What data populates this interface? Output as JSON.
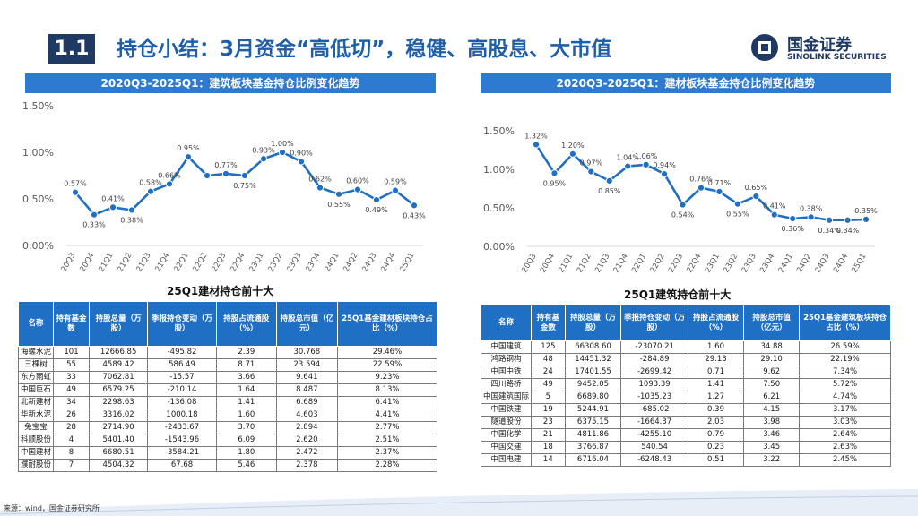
{
  "header": {
    "section_number": "1.1",
    "title": "持仓小结：3月资金“高低切”，稳健、高股息、大市值",
    "logo_cn": "国金证券",
    "logo_en": "SINOLINK SECURITIES"
  },
  "chart_data": [
    {
      "type": "line",
      "title": "2020Q3-2025Q1：建筑板块基金持仓比例变化趋势",
      "categories": [
        "20Q3",
        "20Q4",
        "21Q1",
        "21Q2",
        "21Q3",
        "21Q4",
        "22Q1",
        "22Q2",
        "22Q3",
        "22Q4",
        "23Q1",
        "23Q2",
        "23Q3",
        "23Q4",
        "24Q1",
        "24Q2",
        "24Q3",
        "24Q4",
        "25Q1"
      ],
      "values": [
        0.57,
        0.33,
        0.41,
        0.38,
        0.58,
        0.66,
        0.95,
        0.75,
        0.77,
        0.75,
        0.93,
        1.0,
        0.9,
        0.62,
        0.55,
        0.6,
        0.49,
        0.59,
        0.43
      ],
      "data_labels": [
        "0.57%",
        "0.33%",
        "0.41%",
        "0.38%",
        "0.58%",
        "0.66%",
        "0.95%",
        "",
        "0.77%",
        "0.75%",
        "0.93%",
        "1.00%",
        "0.90%",
        "0.62%",
        "0.55%",
        "0.60%",
        "0.49%",
        "0.59%",
        "0.43%"
      ],
      "y_ticks": [
        "0.00%",
        "0.50%",
        "1.00%",
        "1.50%"
      ],
      "ylim": [
        0,
        1.5
      ],
      "color": "#1f6fc5"
    },
    {
      "type": "line",
      "title": "2020Q3-2025Q1：建材板块基金持仓比例变化趋势",
      "categories": [
        "20Q3",
        "20Q4",
        "21Q1",
        "21Q2",
        "21Q3",
        "21Q4",
        "22Q1",
        "22Q2",
        "22Q3",
        "22Q4",
        "23Q1",
        "23Q2",
        "23Q3",
        "23Q4",
        "24Q1",
        "24Q2",
        "24Q3",
        "24Q4",
        "25Q1"
      ],
      "values": [
        1.32,
        0.95,
        1.2,
        0.97,
        0.85,
        1.04,
        1.06,
        0.94,
        0.54,
        0.76,
        0.71,
        0.55,
        0.65,
        0.41,
        0.36,
        0.38,
        0.34,
        0.34,
        0.35
      ],
      "data_labels": [
        "1.32%",
        "0.95%",
        "1.20%",
        "0.97%",
        "0.85%",
        "1.04%",
        "1.06%",
        "0.94%",
        "0.54%",
        "0.76%",
        "0.71%",
        "0.55%",
        "0.65%",
        "0.41%",
        "0.36%",
        "0.38%",
        "0.34%",
        "0.34%",
        "0.35%"
      ],
      "y_ticks": [
        "0.00%",
        "0.50%",
        "1.00%",
        "1.50%"
      ],
      "ylim": [
        0,
        1.5
      ],
      "color": "#1f6fc5"
    }
  ],
  "left_table": {
    "title": "25Q1建材持仓前十大",
    "headers": [
      "名称",
      "持有基金数",
      "持股总量（万股）",
      "季报持仓变动（万股）",
      "持股占流通股（%）",
      "持股总市值（亿元）",
      "25Q1基金建材板块持仓占比（%）"
    ],
    "rows": [
      [
        "海螺水泥",
        "101",
        "12666.85",
        "-495.82",
        "2.39",
        "30.768",
        "29.46%"
      ],
      [
        "三棵树",
        "55",
        "4589.42",
        "586.49",
        "8.71",
        "23.594",
        "22.59%"
      ],
      [
        "东方雨虹",
        "33",
        "7062.81",
        "-15.57",
        "3.66",
        "9.641",
        "9.23%"
      ],
      [
        "中国巨石",
        "49",
        "6579.25",
        "-210.14",
        "1.64",
        "8.487",
        "8.13%"
      ],
      [
        "北新建材",
        "34",
        "2298.63",
        "-136.08",
        "1.41",
        "6.689",
        "6.41%"
      ],
      [
        "华新水泥",
        "26",
        "3316.02",
        "1000.18",
        "1.60",
        "4.603",
        "4.41%"
      ],
      [
        "兔宝宝",
        "28",
        "2714.90",
        "-2433.67",
        "3.70",
        "2.894",
        "2.77%"
      ],
      [
        "科顺股份",
        "4",
        "5401.40",
        "-1543.96",
        "6.09",
        "2.620",
        "2.51%"
      ],
      [
        "中国建材",
        "8",
        "6680.51",
        "-3584.21",
        "1.80",
        "2.472",
        "2.37%"
      ],
      [
        "濮耐股份",
        "7",
        "4504.32",
        "67.68",
        "5.46",
        "2.378",
        "2.28%"
      ]
    ]
  },
  "right_table": {
    "title": "25Q1建筑持仓前十大",
    "headers": [
      "名称",
      "持有基金数",
      "持股总量（万股）",
      "季报持仓变动（万股）",
      "持股占流通股（%）",
      "持股总市值（亿元）",
      "25Q1基金建筑板块持仓占比（%）"
    ],
    "rows": [
      [
        "中国建筑",
        "125",
        "66308.60",
        "-23070.21",
        "1.60",
        "34.88",
        "26.59%"
      ],
      [
        "鸿路钢构",
        "48",
        "14451.32",
        "-284.89",
        "29.13",
        "29.10",
        "22.19%"
      ],
      [
        "中国中铁",
        "24",
        "17401.55",
        "-2699.42",
        "0.71",
        "9.62",
        "7.34%"
      ],
      [
        "四川路桥",
        "49",
        "9452.05",
        "1093.39",
        "1.41",
        "7.50",
        "5.72%"
      ],
      [
        "中国建筑国际",
        "5",
        "6689.80",
        "-1035.23",
        "1.27",
        "6.21",
        "4.74%"
      ],
      [
        "中国铁建",
        "19",
        "5244.91",
        "-685.02",
        "0.39",
        "4.15",
        "3.17%"
      ],
      [
        "隧道股份",
        "23",
        "6375.15",
        "-1664.37",
        "2.03",
        "3.98",
        "3.03%"
      ],
      [
        "中国化学",
        "21",
        "4811.86",
        "-4255.10",
        "0.79",
        "3.46",
        "2.64%"
      ],
      [
        "中国交建",
        "18",
        "3766.87",
        "540.54",
        "0.23",
        "3.45",
        "2.63%"
      ],
      [
        "中国电建",
        "14",
        "6716.04",
        "-6248.43",
        "0.51",
        "3.22",
        "2.45%"
      ]
    ]
  },
  "footer": {
    "source": "来源：wind，国金证券研究所"
  }
}
